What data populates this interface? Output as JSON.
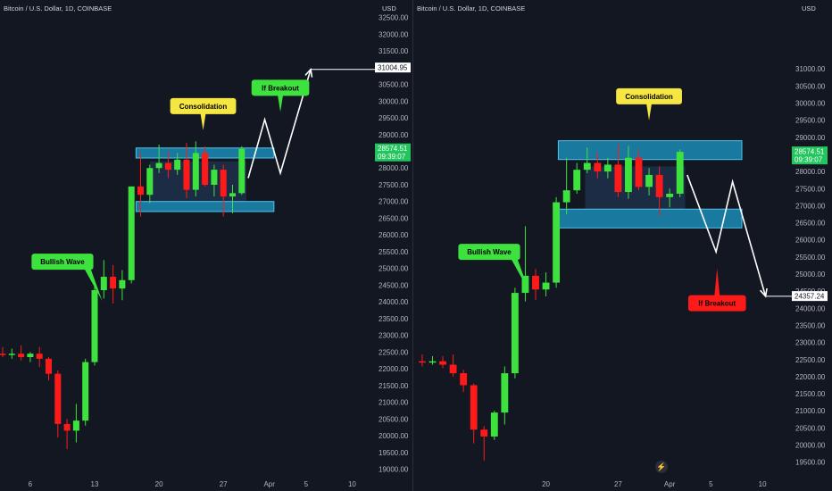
{
  "chart_data": [
    {
      "type": "candlestick",
      "title": "Bitcoin / U.S. Dollar, 1D, COINBASE",
      "ylabel": "USD",
      "ylim": [
        18800,
        32650
      ],
      "y_ticks": [
        19000,
        19500,
        20000,
        20500,
        21000,
        21500,
        22000,
        22500,
        23000,
        23500,
        24000,
        24500,
        25000,
        25500,
        26000,
        26500,
        27000,
        27500,
        28000,
        28500,
        29000,
        29500,
        30000,
        30500,
        31000,
        31500,
        32000,
        32500
      ],
      "y_tick_labels": [
        "19000.00",
        "19500.00",
        "20000.00",
        "20500.00",
        "21000.00",
        "21500.00",
        "22000.00",
        "22500.00",
        "23000.00",
        "23500.00",
        "24000.00",
        "24500.00",
        "25000.00",
        "25500.00",
        "26000.00",
        "26500.00",
        "27000.00",
        "27500.00",
        "28000.00",
        "28500.00",
        "29000.00",
        "29500.00",
        "30000.00",
        "30500.00",
        "31000.00",
        "31500.00",
        "32000.00",
        "32500.00"
      ],
      "x_tick_labels": [
        {
          "day": 6,
          "label": "6"
        },
        {
          "day": 13,
          "label": "13"
        },
        {
          "day": 20,
          "label": "20"
        },
        {
          "day": 27,
          "label": "27"
        },
        {
          "day": 32,
          "label": "Apr"
        },
        {
          "day": 36,
          "label": "5"
        },
        {
          "day": 41,
          "label": "10"
        }
      ],
      "x_range": [
        3,
        43
      ],
      "candles": [
        {
          "day": 3,
          "open": 22450,
          "high": 22650,
          "low": 22350,
          "close": 22430
        },
        {
          "day": 4,
          "open": 22430,
          "high": 22600,
          "low": 22300,
          "close": 22450
        },
        {
          "day": 5,
          "open": 22450,
          "high": 22700,
          "low": 22250,
          "close": 22350
        },
        {
          "day": 6,
          "open": 22350,
          "high": 22500,
          "low": 22200,
          "close": 22450
        },
        {
          "day": 7,
          "open": 22450,
          "high": 22650,
          "low": 22050,
          "close": 22300
        },
        {
          "day": 8,
          "open": 22300,
          "high": 22350,
          "low": 21650,
          "close": 21850
        },
        {
          "day": 9,
          "open": 21850,
          "high": 21950,
          "low": 19950,
          "close": 20350
        },
        {
          "day": 10,
          "open": 20350,
          "high": 20500,
          "low": 19600,
          "close": 20150
        },
        {
          "day": 11,
          "open": 20150,
          "high": 20950,
          "low": 19800,
          "close": 20450
        },
        {
          "day": 12,
          "open": 20450,
          "high": 22300,
          "low": 20300,
          "close": 22200
        },
        {
          "day": 13,
          "open": 22200,
          "high": 24600,
          "low": 22100,
          "close": 24350
        },
        {
          "day": 14,
          "open": 24350,
          "high": 25250,
          "low": 24100,
          "close": 24750
        },
        {
          "day": 15,
          "open": 24750,
          "high": 25100,
          "low": 23950,
          "close": 24400
        },
        {
          "day": 16,
          "open": 24400,
          "high": 24950,
          "low": 24050,
          "close": 24650
        },
        {
          "day": 17,
          "open": 24650,
          "high": 27350,
          "low": 24550,
          "close": 27450
        },
        {
          "day": 18,
          "open": 27450,
          "high": 28450,
          "low": 26550,
          "close": 27200
        },
        {
          "day": 19,
          "open": 27200,
          "high": 28100,
          "low": 26950,
          "close": 28000
        },
        {
          "day": 20,
          "open": 28000,
          "high": 28700,
          "low": 27850,
          "close": 28150
        },
        {
          "day": 21,
          "open": 28150,
          "high": 28500,
          "low": 27700,
          "close": 27950
        },
        {
          "day": 22,
          "open": 27950,
          "high": 28450,
          "low": 27800,
          "close": 28250
        },
        {
          "day": 23,
          "open": 28250,
          "high": 28750,
          "low": 27100,
          "close": 27350
        },
        {
          "day": 24,
          "open": 27350,
          "high": 28800,
          "low": 27150,
          "close": 28450
        },
        {
          "day": 25,
          "open": 28450,
          "high": 28650,
          "low": 27450,
          "close": 27500
        },
        {
          "day": 26,
          "open": 27500,
          "high": 28100,
          "low": 27150,
          "close": 27950
        },
        {
          "day": 27,
          "open": 27950,
          "high": 28100,
          "low": 26550,
          "close": 27150
        },
        {
          "day": 28,
          "open": 27150,
          "high": 27500,
          "low": 26650,
          "close": 27250
        },
        {
          "day": 29,
          "open": 27250,
          "high": 28650,
          "low": 27200,
          "close": 28574.51
        }
      ],
      "rectangles": [
        {
          "label": "resistance-zone",
          "day_from": 17.5,
          "day_to": 32.5,
          "top": 28600,
          "bottom": 28300
        },
        {
          "label": "consolidation-range",
          "day_from": 19,
          "day_to": 29.5,
          "top": 28200,
          "bottom": 27000
        },
        {
          "label": "support-zone",
          "day_from": 17.5,
          "day_to": 32.5,
          "top": 27000,
          "bottom": 26700
        }
      ],
      "path": [
        {
          "day": 29.7,
          "price": 27700
        },
        {
          "day": 31.5,
          "price": 29450
        },
        {
          "day": 33.2,
          "price": 27850
        },
        {
          "day": 36.5,
          "price": 30950
        }
      ],
      "annotations": [
        {
          "text": "Consolidation",
          "day": 24.8,
          "price": 29850,
          "color": "#f5e642",
          "text_color": "#000000",
          "pointer": "down"
        },
        {
          "text": "If Breakout",
          "day": 33.2,
          "price": 30400,
          "color": "#3ee23e",
          "text_color": "#000000",
          "pointer": "down"
        },
        {
          "text": "Bullish Wave",
          "day": 9.5,
          "price": 25200,
          "color": "#3ee23e",
          "text_color": "#000000",
          "pointer": "down-right"
        }
      ],
      "price_labels": [
        {
          "price": 31004.95,
          "text": "31004.95",
          "bg": "#ffffff",
          "fg": "#131722"
        },
        {
          "price": 28574.51,
          "text": "28574.51",
          "text2": "09:39:07",
          "bg": "#22c55e",
          "fg": "#ffffff"
        }
      ],
      "up_color": "#3ee23e",
      "down_color": "#ff1a1a"
    },
    {
      "type": "candlestick",
      "title": "Bitcoin / U.S. Dollar, 1D, COINBASE",
      "ylabel": "USD",
      "ylim": [
        19100,
        32650
      ],
      "y_ticks": [
        19500,
        20000,
        20500,
        21000,
        21500,
        22000,
        22500,
        23000,
        23500,
        24000,
        24500,
        25000,
        25500,
        26000,
        26500,
        27000,
        27500,
        28000,
        28500,
        29000,
        29500,
        30000,
        30500,
        31000
      ],
      "y_tick_labels": [
        "19500.00",
        "20000.00",
        "20500.00",
        "21000.00",
        "21500.00",
        "22000.00",
        "22500.00",
        "23000.00",
        "23500.00",
        "24000.00",
        "24500.00",
        "25000.00",
        "25500.00",
        "26000.00",
        "26500.00",
        "27000.00",
        "27500.00",
        "28000.00",
        "28500.00",
        "29000.00",
        "29500.00",
        "30000.00",
        "30500.00",
        "31000.00"
      ],
      "x_tick_labels": [
        {
          "day": 20,
          "label": "20"
        },
        {
          "day": 27,
          "label": "27"
        },
        {
          "day": 32,
          "label": "Apr"
        },
        {
          "day": 36,
          "label": "5"
        },
        {
          "day": 41,
          "label": "10"
        }
      ],
      "x_range": [
        7.4,
        43.5
      ],
      "candles": [
        {
          "day": 8,
          "open": 22450,
          "high": 22650,
          "low": 22300,
          "close": 22430
        },
        {
          "day": 9,
          "open": 22430,
          "high": 22600,
          "low": 22350,
          "close": 22450
        },
        {
          "day": 10,
          "open": 22450,
          "high": 22600,
          "low": 22250,
          "close": 22350
        },
        {
          "day": 11,
          "open": 22350,
          "high": 22650,
          "low": 22000,
          "close": 22100
        },
        {
          "day": 12,
          "open": 22100,
          "high": 22200,
          "low": 21550,
          "close": 21750
        },
        {
          "day": 13,
          "open": 21750,
          "high": 21800,
          "low": 20050,
          "close": 20450
        },
        {
          "day": 14,
          "open": 20450,
          "high": 20550,
          "low": 19550,
          "close": 20250
        },
        {
          "day": 15,
          "open": 20250,
          "high": 21000,
          "low": 20150,
          "close": 20950
        },
        {
          "day": 16,
          "open": 20950,
          "high": 22300,
          "low": 20600,
          "close": 22100
        },
        {
          "day": 17,
          "open": 22100,
          "high": 24600,
          "low": 21950,
          "close": 24450
        },
        {
          "day": 18,
          "open": 24450,
          "high": 26400,
          "low": 24200,
          "close": 24950
        },
        {
          "day": 19,
          "open": 24950,
          "high": 25150,
          "low": 24250,
          "close": 24550
        },
        {
          "day": 20,
          "open": 24550,
          "high": 25050,
          "low": 24350,
          "close": 24750
        },
        {
          "day": 21,
          "open": 24750,
          "high": 27250,
          "low": 24600,
          "close": 27100
        },
        {
          "day": 22,
          "open": 27100,
          "high": 28400,
          "low": 26750,
          "close": 27450
        },
        {
          "day": 23,
          "open": 27450,
          "high": 28250,
          "low": 27350,
          "close": 28050
        },
        {
          "day": 24,
          "open": 28050,
          "high": 28700,
          "low": 27950,
          "close": 28250
        },
        {
          "day": 25,
          "open": 28250,
          "high": 28550,
          "low": 27800,
          "close": 28000
        },
        {
          "day": 26,
          "open": 28000,
          "high": 28400,
          "low": 27800,
          "close": 28200
        },
        {
          "day": 27,
          "open": 28200,
          "high": 28800,
          "low": 27250,
          "close": 27400
        },
        {
          "day": 28,
          "open": 27400,
          "high": 28750,
          "low": 27200,
          "close": 28400
        },
        {
          "day": 29,
          "open": 28400,
          "high": 28650,
          "low": 27450,
          "close": 27550
        },
        {
          "day": 30,
          "open": 27550,
          "high": 28100,
          "low": 27300,
          "close": 27900
        },
        {
          "day": 31,
          "open": 27900,
          "high": 28150,
          "low": 26700,
          "close": 27250
        },
        {
          "day": 32,
          "open": 27250,
          "high": 27500,
          "low": 26950,
          "close": 27350
        },
        {
          "day": 33,
          "open": 27350,
          "high": 28650,
          "low": 27250,
          "close": 28574.51
        }
      ],
      "rectangles": [
        {
          "label": "resistance-zone",
          "day_from": 21.2,
          "day_to": 39,
          "top": 28900,
          "bottom": 28350
        },
        {
          "label": "consolidation-range",
          "day_from": 23.8,
          "day_to": 33.5,
          "top": 28150,
          "bottom": 26900
        },
        {
          "label": "support-zone",
          "day_from": 21.2,
          "day_to": 39,
          "top": 26900,
          "bottom": 26350
        }
      ],
      "path": [
        {
          "day": 33.7,
          "price": 27900
        },
        {
          "day": 36.5,
          "price": 25650
        },
        {
          "day": 38.1,
          "price": 27700
        },
        {
          "day": 41.3,
          "price": 24350
        }
      ],
      "annotations": [
        {
          "text": "Consolidation",
          "day": 30,
          "price": 30200,
          "color": "#f5e642",
          "text_color": "#000000",
          "pointer": "down"
        },
        {
          "text": "If Breakout",
          "day": 36.6,
          "price": 24150,
          "color": "#ff1a1a",
          "text_color": "#000000",
          "pointer": "up"
        },
        {
          "text": "Bullish Wave",
          "day": 14.5,
          "price": 25650,
          "color": "#3ee23e",
          "text_color": "#000000",
          "pointer": "down-right"
        }
      ],
      "price_labels": [
        {
          "price": 28574.51,
          "text": "28574.51",
          "text2": "09:39:07",
          "bg": "#22c55e",
          "fg": "#ffffff"
        },
        {
          "price": 24357.24,
          "text": "24357.24",
          "bg": "#ffffff",
          "fg": "#131722"
        }
      ],
      "up_color": "#3ee23e",
      "down_color": "#ff1a1a"
    }
  ]
}
